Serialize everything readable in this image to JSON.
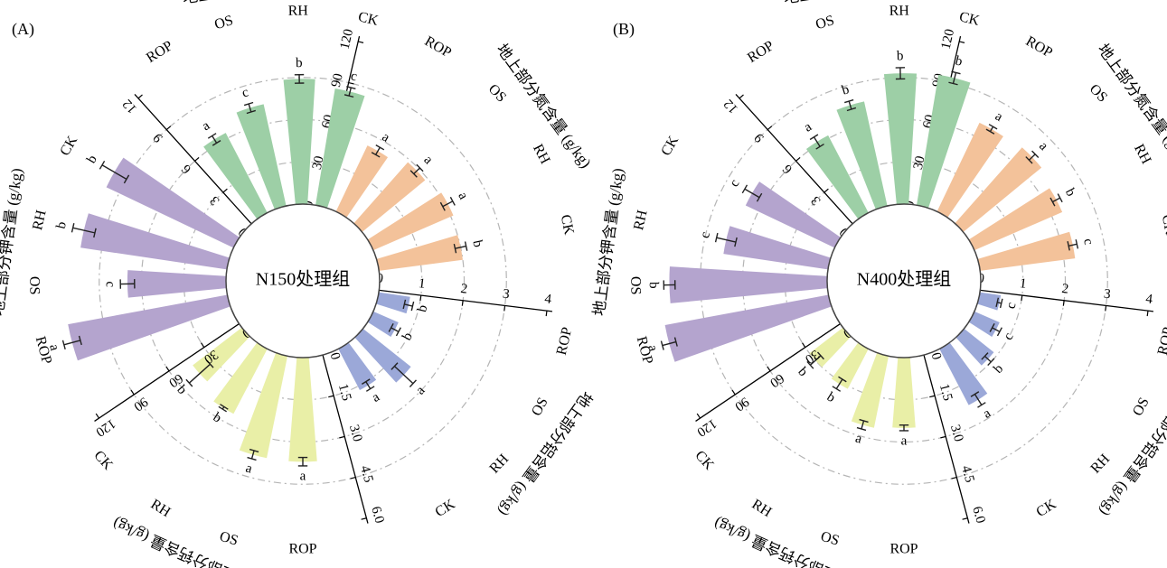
{
  "chart_data": [
    {
      "type": "bar",
      "subtype": "circular-radial-bar",
      "panel_label": "(A)",
      "center_label": "N150处理组",
      "sectors": [
        {
          "key": "N",
          "axis_title": "地上部分氮含量 (g/kg)",
          "ticks": [
            "0",
            "30",
            "60",
            "90",
            "120"
          ],
          "max": 120,
          "color": "#f3c29a",
          "categories": [
            "ROP",
            "OS",
            "RH",
            "CK"
          ],
          "values": [
            52,
            58,
            62,
            60
          ],
          "errors": [
            3,
            3,
            4,
            4
          ],
          "significance": [
            "a",
            "a",
            "a",
            "b"
          ]
        },
        {
          "key": "Al",
          "axis_title": "地上部分铝含量 (g/kg)",
          "ticks": [
            "0",
            "1",
            "2",
            "3",
            "4"
          ],
          "max": 4,
          "color": "#9ba8d8",
          "categories": [
            "ROP",
            "OS",
            "RH",
            "CK"
          ],
          "values": [
            0.75,
            0.65,
            1.45,
            1.1
          ],
          "errors": [
            0.1,
            0.1,
            0.3,
            0.1
          ],
          "significance": [
            "b",
            "b",
            "a",
            "a"
          ]
        },
        {
          "key": "Ca",
          "axis_title": "地上部分钙含量 (g/kg)",
          "ticks": [
            "0.0",
            "1.5",
            "3.0",
            "4.5",
            "6.0"
          ],
          "max": 6,
          "color": "#e9efa7",
          "categories": [
            "ROP",
            "OS",
            "RH",
            "CK"
          ],
          "values": [
            3.7,
            3.7,
            2.6,
            2.2
          ],
          "errors": [
            0.15,
            0.15,
            0.05,
            0.5
          ],
          "significance": [
            "a",
            "a",
            "b",
            "b"
          ]
        },
        {
          "key": "K",
          "axis_title": "地上部分钾含量 (g/kg)",
          "ticks": [
            "0",
            "30",
            "60",
            "90",
            "120"
          ],
          "max": 120,
          "color": "#b4a4ce",
          "categories": [
            "ROP",
            "OS",
            "RH",
            "CK"
          ],
          "values": [
            115,
            70,
            105,
            100
          ],
          "errors": [
            6,
            5,
            8,
            10
          ],
          "significance": [
            "a",
            "c",
            "b",
            "b"
          ]
        },
        {
          "key": "P",
          "axis_title": "地上部分磷含量 (g/kg)",
          "ticks": [
            "0",
            "3",
            "6",
            "9",
            "12"
          ],
          "max": 12,
          "color": "#9dcfa6",
          "categories": [
            "ROP",
            "OS",
            "RH",
            "CK"
          ],
          "values": [
            6.4,
            7.4,
            8.9,
            8.4
          ],
          "errors": [
            0.3,
            0.3,
            0.3,
            0.3
          ],
          "significance": [
            "a",
            "c",
            "b",
            "c"
          ]
        }
      ]
    },
    {
      "type": "bar",
      "subtype": "circular-radial-bar",
      "panel_label": "(B)",
      "center_label": "N400处理组",
      "sectors": [
        {
          "key": "N",
          "axis_title": "地上部分氮含量 (g/kg)",
          "ticks": [
            "0",
            "30",
            "60",
            "90",
            "120"
          ],
          "max": 120,
          "color": "#f3c29a",
          "categories": [
            "ROP",
            "OS",
            "RH",
            "CK"
          ],
          "values": [
            70,
            72,
            68,
            68
          ],
          "errors": [
            2,
            3,
            3,
            3
          ],
          "significance": [
            "a",
            "a",
            "b",
            "c"
          ]
        },
        {
          "key": "Al",
          "axis_title": "地上部分铝含量 (g/kg)",
          "ticks": [
            "0",
            "1",
            "2",
            "3",
            "4"
          ],
          "max": 4,
          "color": "#9ba8d8",
          "categories": [
            "ROP",
            "OS",
            "RH",
            "CK"
          ],
          "values": [
            0.5,
            0.65,
            0.9,
            1.5
          ],
          "errors": [
            0.05,
            0.1,
            0.1,
            0.15
          ],
          "significance": [
            "c",
            "c",
            "b",
            "a"
          ]
        },
        {
          "key": "Ca",
          "axis_title": "地上部分钙含量 (g/kg)",
          "ticks": [
            "0.0",
            "1.5",
            "3.0",
            "4.5",
            "6.0"
          ],
          "max": 6,
          "color": "#e9efa7",
          "categories": [
            "ROP",
            "OS",
            "RH",
            "CK"
          ],
          "values": [
            2.5,
            2.6,
            1.6,
            1.5
          ],
          "errors": [
            0.1,
            0.15,
            0.2,
            0.25
          ],
          "significance": [
            "a",
            "a",
            "b",
            "b"
          ]
        },
        {
          "key": "K",
          "axis_title": "地上部分钾含量 (g/kg)",
          "ticks": [
            "0",
            "30",
            "60",
            "90",
            "120"
          ],
          "max": 120,
          "color": "#b4a4ce",
          "categories": [
            "ROP",
            "OS",
            "RH",
            "CK"
          ],
          "values": [
            118,
            112,
            75,
            70
          ],
          "errors": [
            5,
            4,
            7,
            6
          ],
          "significance": [
            "a",
            "b",
            "c",
            "c"
          ]
        },
        {
          "key": "P",
          "axis_title": "地上部分磷含量 (g/kg)",
          "ticks": [
            "0",
            "3",
            "6",
            "9",
            "12"
          ],
          "max": 12,
          "color": "#9dcfa6",
          "categories": [
            "ROP",
            "OS",
            "RH",
            "CK"
          ],
          "values": [
            6.2,
            7.6,
            9.3,
            9.4
          ],
          "errors": [
            0.4,
            0.3,
            0.4,
            0.4
          ],
          "significance": [
            "a",
            "b",
            "b",
            "b"
          ]
        }
      ]
    }
  ]
}
